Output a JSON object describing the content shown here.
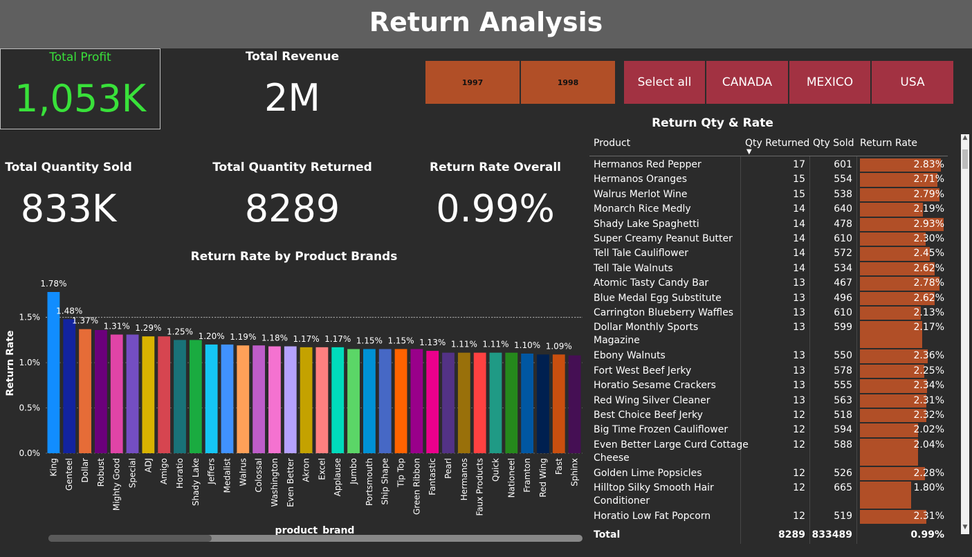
{
  "header": {
    "title": "Return Analysis"
  },
  "kpis": {
    "profit": {
      "label": "Total Profit",
      "value": "1,053K"
    },
    "revenue": {
      "label": "Total Revenue",
      "value": "2M"
    },
    "qty_sold": {
      "label": "Total Quantity Sold",
      "value": "833K"
    },
    "qty_returned": {
      "label": "Total Quantity Returned",
      "value": "8289"
    },
    "return_rate": {
      "label": "Return Rate Overall",
      "value": "0.99%"
    }
  },
  "filters": {
    "years": [
      "1997",
      "1998"
    ],
    "countries": [
      "Select all",
      "CANADA",
      "MEXICO",
      "USA"
    ]
  },
  "colors": {
    "accent_orange": "#b14f27",
    "accent_red": "#a23242",
    "kpi_green": "#39e13a",
    "header_bg": "#5f5f5f",
    "page_bg": "#2b2b2b"
  },
  "table": {
    "title": "Return Qty & Rate",
    "columns": [
      "Product",
      "Qty Returned",
      "Qty Sold",
      "Return Rate"
    ],
    "sort_icon": "caret-down-icon",
    "rows": [
      {
        "product": "Hermanos Red Pepper",
        "returned": "17",
        "sold": "601",
        "rate": "2.83%"
      },
      {
        "product": "Hermanos Oranges",
        "returned": "15",
        "sold": "554",
        "rate": "2.71%"
      },
      {
        "product": "Walrus Merlot Wine",
        "returned": "15",
        "sold": "538",
        "rate": "2.79%"
      },
      {
        "product": "Monarch Rice Medly",
        "returned": "14",
        "sold": "640",
        "rate": "2.19%"
      },
      {
        "product": "Shady Lake Spaghetti",
        "returned": "14",
        "sold": "478",
        "rate": "2.93%"
      },
      {
        "product": "Super Creamy Peanut Butter",
        "returned": "14",
        "sold": "610",
        "rate": "2.30%"
      },
      {
        "product": "Tell Tale Cauliflower",
        "returned": "14",
        "sold": "572",
        "rate": "2.45%"
      },
      {
        "product": "Tell Tale Walnuts",
        "returned": "14",
        "sold": "534",
        "rate": "2.62%"
      },
      {
        "product": "Atomic Tasty Candy Bar",
        "returned": "13",
        "sold": "467",
        "rate": "2.78%"
      },
      {
        "product": "Blue Medal Egg Substitute",
        "returned": "13",
        "sold": "496",
        "rate": "2.62%"
      },
      {
        "product": "Carrington Blueberry Waffles",
        "returned": "13",
        "sold": "610",
        "rate": "2.13%"
      },
      {
        "product": "Dollar Monthly Sports",
        "product_line2": "Magazine",
        "returned": "13",
        "sold": "599",
        "rate": "2.17%"
      },
      {
        "product": "Ebony Walnuts",
        "returned": "13",
        "sold": "550",
        "rate": "2.36%"
      },
      {
        "product": "Fort West Beef Jerky",
        "returned": "13",
        "sold": "578",
        "rate": "2.25%"
      },
      {
        "product": "Horatio Sesame Crackers",
        "returned": "13",
        "sold": "555",
        "rate": "2.34%"
      },
      {
        "product": "Red Wing Silver Cleaner",
        "returned": "13",
        "sold": "563",
        "rate": "2.31%"
      },
      {
        "product": "Best Choice Beef Jerky",
        "returned": "12",
        "sold": "518",
        "rate": "2.32%"
      },
      {
        "product": "Big Time Frozen Cauliflower",
        "returned": "12",
        "sold": "594",
        "rate": "2.02%"
      },
      {
        "product": "Even Better Large Curd Cottage",
        "product_line2": "Cheese",
        "returned": "12",
        "sold": "588",
        "rate": "2.04%"
      },
      {
        "product": "Golden Lime Popsicles",
        "returned": "12",
        "sold": "526",
        "rate": "2.28%"
      },
      {
        "product": "Hilltop Silky Smooth Hair",
        "product_line2": "Conditioner",
        "returned": "12",
        "sold": "665",
        "rate": "1.80%"
      },
      {
        "product": "Horatio Low Fat Popcorn",
        "returned": "12",
        "sold": "519",
        "rate": "2.31%"
      }
    ],
    "total": {
      "label": "Total",
      "returned": "8289",
      "sold": "833489",
      "rate": "0.99%"
    }
  },
  "chart_data": {
    "type": "bar",
    "title": "Return Rate by Product Brands",
    "xlabel": "product_brand",
    "ylabel": "Return Rate",
    "ylim": [
      0,
      0.018
    ],
    "yticks": [
      0,
      0.5,
      1.0,
      1.5
    ],
    "ytick_labels": [
      "0.0%",
      "0.5%",
      "1.0%",
      "1.5%"
    ],
    "categories": [
      "King",
      "Genteel",
      "Dollar",
      "Robust",
      "Mighty Good",
      "Special",
      "ADJ",
      "Amigo",
      "Horatio",
      "Shady Lake",
      "Jeffers",
      "Medalist",
      "Walrus",
      "Colossal",
      "Washington",
      "Even Better",
      "Akron",
      "Excel",
      "Applause",
      "Jumbo",
      "Portsmouth",
      "Ship Shape",
      "Tip Top",
      "Green Ribbon",
      "Fantastic",
      "Pearl",
      "Hermanos",
      "Faux Products",
      "Quick",
      "Nationeel",
      "Framton",
      "Red Wing",
      "Fast",
      "Sphinx"
    ],
    "values": [
      1.78,
      1.48,
      1.37,
      1.36,
      1.31,
      1.31,
      1.29,
      1.29,
      1.25,
      1.25,
      1.2,
      1.2,
      1.19,
      1.19,
      1.18,
      1.18,
      1.17,
      1.17,
      1.17,
      1.15,
      1.15,
      1.15,
      1.15,
      1.15,
      1.13,
      1.11,
      1.11,
      1.11,
      1.11,
      1.11,
      1.1,
      1.09,
      1.09,
      1.08
    ],
    "labels": [
      "1.78%",
      "1.48%",
      "1.37%",
      "",
      "1.31%",
      "",
      "1.29%",
      "",
      "1.25%",
      "",
      "1.20%",
      "",
      "1.19%",
      "",
      "1.18%",
      "",
      "1.17%",
      "",
      "1.17%",
      "",
      "1.15%",
      "",
      "1.15%",
      "",
      "1.13%",
      "",
      "1.11%",
      "",
      "1.11%",
      "",
      "1.10%",
      "",
      "1.09%",
      ""
    ],
    "colors": [
      "#118dff",
      "#12239e",
      "#e66c37",
      "#6b007b",
      "#e044a7",
      "#744ec2",
      "#d9b300",
      "#d64550",
      "#197278",
      "#1aab40",
      "#15c6f4",
      "#4092ff",
      "#ffa058",
      "#be5dc9",
      "#f472d0",
      "#b5a1ff",
      "#c4a200",
      "#ff8080",
      "#00dbbc",
      "#5bd667",
      "#0091d5",
      "#4668c5",
      "#ff6300",
      "#99008a",
      "#ec008c",
      "#533285",
      "#99700a",
      "#ff4141",
      "#1f9a85",
      "#25891c",
      "#0057a2",
      "#002050",
      "#c94f0f",
      "#450f54"
    ],
    "reference_line": 1.5,
    "grid": true
  }
}
